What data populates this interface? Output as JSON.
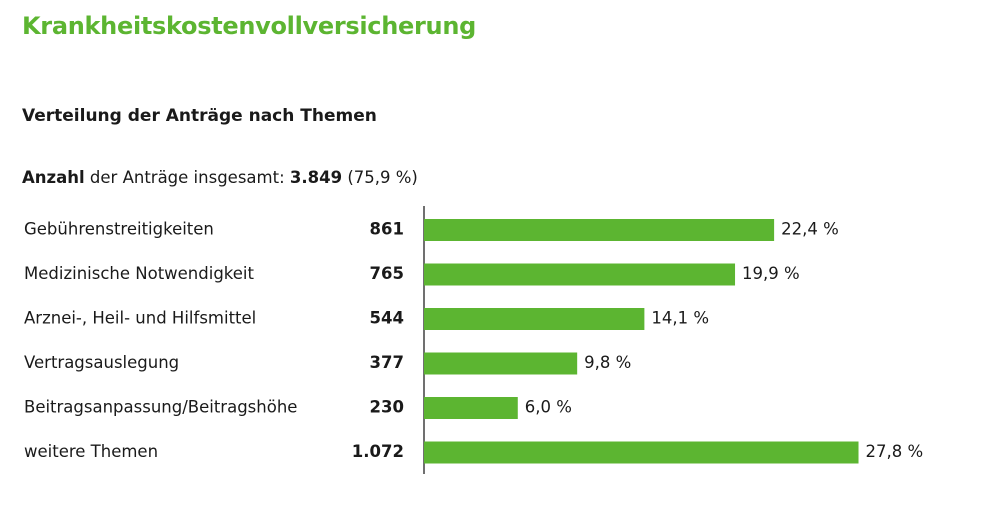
{
  "page": {
    "heading": "Krankheitskostenvollversicherung",
    "subheading": "Verteilung der Anträge nach Themen",
    "summary": {
      "prefix_bold": "Anzahl",
      "middle": " der Anträge insgesamt: ",
      "total": "3.849",
      "share": " (75,9 %)"
    }
  },
  "colors": {
    "bar": "#5cb531",
    "axis": "#333333",
    "heading": "#5cb531"
  },
  "chart_data": {
    "type": "bar",
    "orientation": "horizontal",
    "title": "Verteilung der Anträge nach Themen",
    "categories": [
      "Gebührenstreitigkeiten",
      "Medizinische Notwendigkeit",
      "Arznei-, Heil- und Hilfsmittel",
      "Vertragsauslegung",
      "Beitragsanpassung/Beitragshöhe",
      "weitere Themen"
    ],
    "counts": [
      861,
      765,
      544,
      377,
      230,
      1072
    ],
    "count_labels": [
      "861",
      "765",
      "544",
      "377",
      "230",
      "1.072"
    ],
    "values": [
      22.4,
      19.9,
      14.1,
      9.8,
      6.0,
      27.8
    ],
    "value_labels": [
      "22,4 %",
      "19,9 %",
      "14,1 %",
      "9,8 %",
      "6,0 %",
      "27,8 %"
    ],
    "grid": false,
    "legend": "none"
  }
}
